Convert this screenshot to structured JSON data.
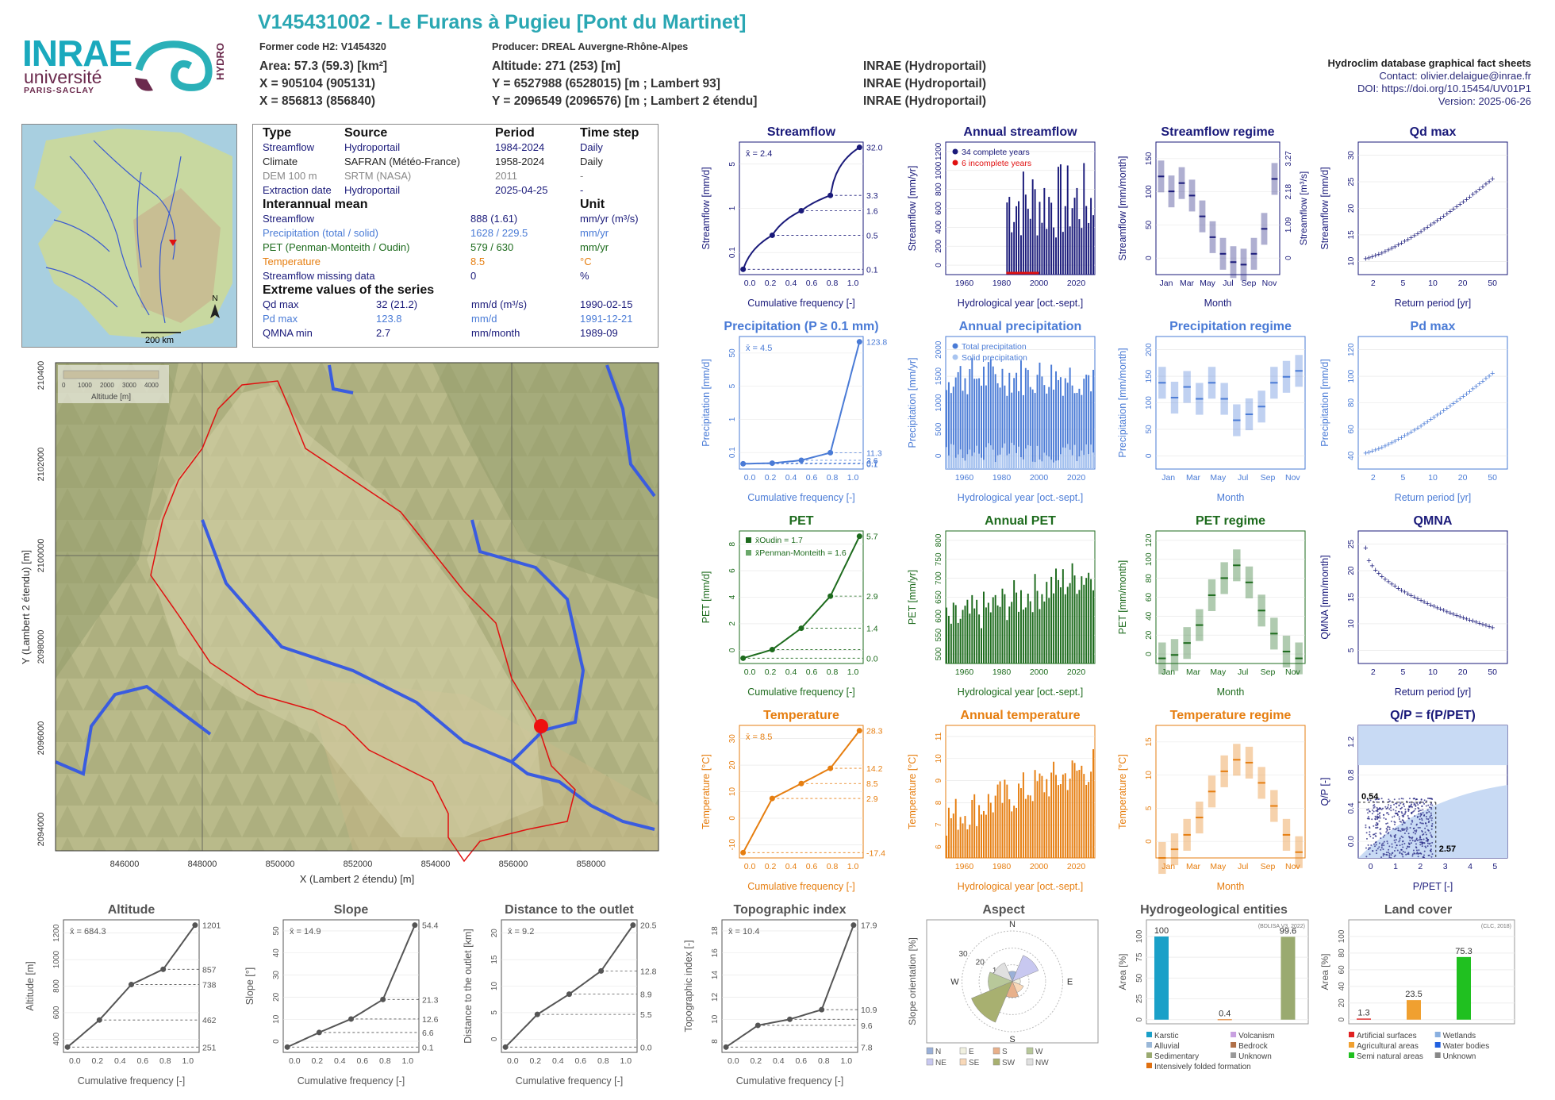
{
  "header": {
    "title": "V145431002 - Le Furans à Pugieu [Pont du Martinet]",
    "former_code": "Former code H2: V1454320",
    "producer": "Producer: DREAL Auvergne-Rhône-Alpes",
    "area": "Area: 57.3 (59.3) [km²]",
    "altitude": "Altitude: 271 (253) [m]",
    "x93": "X = 905104 (905131)",
    "y93": "Y = 6527988 (6528015) [m ; Lambert 93]",
    "x2": "X = 856813 (856840)",
    "y2": "Y = 2096549 (2096576) [m ; Lambert 2 étendu]",
    "src1": "INRAE (Hydroportail)",
    "src2": "INRAE (Hydroportail)",
    "src3": "INRAE (Hydroportail)",
    "db": "Hydroclim database graphical fact sheets",
    "contact": "Contact: olivier.delaigue@inrae.fr",
    "doi": "DOI: https://doi.org/10.15454/UV01P1",
    "version": "Version: 2025-06-26",
    "logo_inrae": "INRAE",
    "logo_univ": "université",
    "logo_ps": "PARIS-SACLAY",
    "logo_hydro": "HYDRO"
  },
  "minimap": {
    "scale": "200 km",
    "north": "N"
  },
  "info": {
    "h_type": "Type",
    "h_source": "Source",
    "h_period": "Period",
    "h_step": "Time step",
    "rows": [
      [
        "Streamflow",
        "Hydroportail",
        "1984-2024",
        "Daily"
      ],
      [
        "Climate",
        "SAFRAN (Météo-France)",
        "1958-2024",
        "Daily"
      ],
      [
        "DEM 100 m",
        "SRTM (NASA)",
        "2011",
        "-"
      ],
      [
        "Extraction date",
        "Hydroportail",
        "2025-04-25",
        "-"
      ]
    ],
    "h_mean": "Interannual mean",
    "h_unit": "Unit",
    "means": [
      [
        "Streamflow",
        "888 (1.61)",
        "mm/yr (m³/s)"
      ],
      [
        "Precipitation (total / solid)",
        "1628 / 229.5",
        "mm/yr"
      ],
      [
        "PET (Penman-Monteith / Oudin)",
        "579 / 630",
        "mm/yr"
      ],
      [
        "Temperature",
        "8.5",
        "°C"
      ],
      [
        "Streamflow missing data",
        "0",
        "%"
      ]
    ],
    "h_extreme": "Extreme values of the series",
    "extremes": [
      [
        "Qd max",
        "32 (21.2)",
        "mm/d (m³/s)",
        "1990-02-15"
      ],
      [
        "Pd max",
        "123.8",
        "mm/d",
        "1991-12-21"
      ],
      [
        "QMNA min",
        "2.7",
        "mm/month",
        "1989-09"
      ]
    ]
  },
  "map": {
    "legend_ticks": [
      "0",
      "1000",
      "2000",
      "3000",
      "4000"
    ],
    "legend_title": "Altitude [m]",
    "xticks": [
      "846000",
      "848000",
      "850000",
      "852000",
      "854000",
      "856000",
      "858000"
    ],
    "yticks": [
      "2094000",
      "2096000",
      "2098000",
      "2100000",
      "2102000",
      "2104000"
    ],
    "xlabel": "X (Lambert 2 étendu) [m]",
    "ylabel": "Y (Lambert 2 étendu) [m]"
  },
  "chart_data": [
    {
      "type": "line",
      "title": "Streamflow",
      "xlabel": "Cumulative frequency [-]",
      "ylabel": "Streamflow [mm/d]",
      "mean": "x̄ = 2.4",
      "log_y": true,
      "x": [
        0,
        0.25,
        0.5,
        0.75,
        1
      ],
      "y": [
        0.1,
        0.5,
        1.6,
        3.3,
        32.0
      ],
      "right_ticks": [
        "32.0",
        "3.3",
        "1.6",
        "0.5",
        "0.1"
      ],
      "yticks": [
        "0.1",
        "1",
        "5"
      ],
      "xticks": [
        "0.0",
        "0.2",
        "0.4",
        "0.6",
        "0.8",
        "1.0"
      ],
      "color": "#1a1a7a"
    },
    {
      "type": "bar",
      "title": "Annual streamflow",
      "xlabel": "Hydrological year [oct.-sept.]",
      "ylabel": "Streamflow [mm/yr]",
      "legend": [
        "34 complete years",
        "6 incomplete years"
      ],
      "yticks": [
        "0",
        "200",
        "400",
        "600",
        "800",
        "1000",
        "1200"
      ],
      "xticks": [
        "1960",
        "1980",
        "2000",
        "2020"
      ],
      "color": "#1a1a7a"
    },
    {
      "type": "bar",
      "title": "Streamflow regime",
      "xlabel": "Month",
      "ylabel": "Streamflow [mm/month]",
      "right_label": "Streamflow [m³/s]",
      "months": [
        "Jan",
        "Mar",
        "May",
        "Jul",
        "Sep",
        "Nov"
      ],
      "values": [
        118,
        100,
        110,
        95,
        70,
        45,
        25,
        15,
        12,
        25,
        55,
        115
      ],
      "yticks": [
        "0",
        "50",
        "100",
        "150"
      ],
      "right_ticks": [
        "0",
        "1.09",
        "2.18",
        "3.27"
      ],
      "color": "#1a1a7a"
    },
    {
      "type": "scatter",
      "title": "Qd max",
      "xlabel": "Return period [yr]",
      "ylabel": "Streamflow [mm/d]",
      "yticks": [
        "10",
        "15",
        "20",
        "25",
        "30"
      ],
      "xticks": [
        "2",
        "5",
        "10",
        "20",
        "50"
      ],
      "color": "#1a1a7a"
    },
    {
      "type": "line",
      "title": "Precipitation (P ≥ 0.1 mm)",
      "xlabel": "Cumulative frequency [-]",
      "ylabel": "Precipitation [mm/d]",
      "mean": "x̄ = 4.5",
      "x": [
        0,
        0.25,
        0.5,
        0.75,
        1
      ],
      "y": [
        0.1,
        0.7,
        3.6,
        11.3,
        123.8
      ],
      "right_ticks": [
        "123.8",
        "11.3",
        "3.6",
        "0.7",
        "0.1"
      ],
      "yticks": [
        "0.1",
        "1",
        "5",
        "50"
      ],
      "xticks": [
        "0.0",
        "0.2",
        "0.4",
        "0.6",
        "0.8",
        "1.0"
      ],
      "color": "#4a7bd6"
    },
    {
      "type": "bar",
      "title": "Annual precipitation",
      "xlabel": "Hydrological year [oct.-sept.]",
      "ylabel": "Precipitation [mm/yr]",
      "legend": [
        "Total precipitation",
        "Solid precipitation"
      ],
      "yticks": [
        "0",
        "500",
        "1000",
        "1500",
        "2000"
      ],
      "xticks": [
        "1960",
        "1980",
        "2000",
        "2020"
      ],
      "color": "#4a7bd6"
    },
    {
      "type": "bar",
      "title": "Precipitation regime",
      "xlabel": "Month",
      "ylabel": "Precipitation [mm/month]",
      "months": [
        "Jan",
        "Mar",
        "May",
        "Jul",
        "Sep",
        "Nov"
      ],
      "values": [
        145,
        120,
        138,
        118,
        145,
        118,
        82,
        92,
        105,
        145,
        155,
        165
      ],
      "yticks": [
        "0",
        "50",
        "100",
        "150",
        "200"
      ],
      "color": "#4a7bd6"
    },
    {
      "type": "scatter",
      "title": "Pd max",
      "xlabel": "Return period [yr]",
      "ylabel": "Precipitation [mm/d]",
      "yticks": [
        "40",
        "60",
        "80",
        "100",
        "120"
      ],
      "xticks": [
        "2",
        "5",
        "10",
        "20",
        "50"
      ],
      "color": "#4a7bd6"
    },
    {
      "type": "line",
      "title": "PET",
      "xlabel": "Cumulative frequency [-]",
      "ylabel": "PET [mm/d]",
      "legend": [
        "x̄Oudin = 1.7",
        "x̄Penman-Monteith = 1.6"
      ],
      "x": [
        0,
        0.25,
        0.5,
        0.75,
        1
      ],
      "y": [
        0.0,
        0.4,
        1.4,
        2.9,
        5.7
      ],
      "right_ticks": [
        "5.7",
        "2.9",
        "1.4",
        "0.0"
      ],
      "yticks": [
        "0",
        "2",
        "4",
        "6",
        "8"
      ],
      "xticks": [
        "0.0",
        "0.2",
        "0.4",
        "0.6",
        "0.8",
        "1.0"
      ],
      "color": "#1d6b1d"
    },
    {
      "type": "bar",
      "title": "Annual PET",
      "xlabel": "Hydrological year [oct.-sept.]",
      "ylabel": "PET [mm/yr]",
      "yticks": [
        "500",
        "550",
        "600",
        "650",
        "700",
        "750",
        "800"
      ],
      "xticks": [
        "1960",
        "1980",
        "2000",
        "2020"
      ],
      "color": "#1d6b1d"
    },
    {
      "type": "bar",
      "title": "PET regime",
      "xlabel": "Month",
      "ylabel": "PET [mm/month]",
      "months": [
        "Jan",
        "Mar",
        "May",
        "Jul",
        "Sep",
        "Nov"
      ],
      "values": [
        6,
        10,
        24,
        45,
        80,
        100,
        115,
        95,
        62,
        35,
        14,
        6
      ],
      "yticks": [
        "0",
        "20",
        "40",
        "60",
        "80",
        "100",
        "120"
      ],
      "color": "#1d6b1d"
    },
    {
      "type": "scatter",
      "title": "QMNA",
      "xlabel": "Return period [yr]",
      "ylabel": "QMNA [mm/month]",
      "yticks": [
        "5",
        "10",
        "15",
        "20",
        "25"
      ],
      "xticks": [
        "2",
        "5",
        "10",
        "20",
        "50"
      ],
      "color": "#1a1a7a"
    },
    {
      "type": "line",
      "title": "Temperature",
      "xlabel": "Cumulative frequency [-]",
      "ylabel": "Temperature [°C]",
      "mean": "x̄ = 8.5",
      "x": [
        0,
        0.25,
        0.5,
        0.75,
        1
      ],
      "y": [
        -17.4,
        2.9,
        8.5,
        14.2,
        28.3
      ],
      "right_ticks": [
        "28.3",
        "14.2",
        "8.5",
        "2.9",
        "-17.4"
      ],
      "yticks": [
        "-10",
        "0",
        "10",
        "20",
        "30"
      ],
      "xticks": [
        "0.0",
        "0.2",
        "0.4",
        "0.6",
        "0.8",
        "1.0"
      ],
      "color": "#e67e10"
    },
    {
      "type": "bar",
      "title": "Annual temperature",
      "xlabel": "Hydrological year [oct.-sept.]",
      "ylabel": "Temperature [°C]",
      "yticks": [
        "6",
        "7",
        "8",
        "9",
        "10",
        "11"
      ],
      "xticks": [
        "1960",
        "1980",
        "2000",
        "2020"
      ],
      "color": "#e67e10"
    },
    {
      "type": "bar",
      "title": "Temperature regime",
      "xlabel": "Month",
      "ylabel": "Temperature [°C]",
      "months": [
        "Jan",
        "Mar",
        "May",
        "Jul",
        "Sep",
        "Nov"
      ],
      "values": [
        0,
        1.5,
        4,
        7,
        11.5,
        15,
        17,
        16.5,
        13,
        9,
        4,
        1
      ],
      "yticks": [
        "0",
        "5",
        "10",
        "15"
      ],
      "color": "#e67e10"
    },
    {
      "type": "scatter",
      "title": "Q/P = f(P/PET)",
      "xlabel": "P/PET [-]",
      "ylabel": "Q/P [-]",
      "annotations": [
        "0.54",
        "2.57"
      ],
      "yticks": [
        "0.0",
        "0.4",
        "0.8",
        "1.2"
      ],
      "xticks": [
        "0",
        "1",
        "2",
        "3",
        "4",
        "5"
      ],
      "color": "#1a1a7a"
    },
    {
      "type": "line",
      "title": "Altitude",
      "xlabel": "Cumulative frequency [-]",
      "ylabel": "Altitude [m]",
      "mean": "x̄ = 684.3",
      "x": [
        0,
        0.25,
        0.5,
        0.75,
        1
      ],
      "y": [
        251,
        462,
        738,
        857,
        1201
      ],
      "right_ticks": [
        "1201",
        "857",
        "738",
        "462",
        "251"
      ],
      "yticks": [
        "400",
        "600",
        "800",
        "1000",
        "1200"
      ],
      "xticks": [
        "0.0",
        "0.2",
        "0.4",
        "0.6",
        "0.8",
        "1.0"
      ],
      "color": "#555"
    },
    {
      "type": "line",
      "title": "Slope",
      "xlabel": "Cumulative frequency [-]",
      "ylabel": "Slope [°]",
      "mean": "x̄ = 14.9",
      "x": [
        0,
        0.25,
        0.5,
        0.75,
        1
      ],
      "y": [
        0.1,
        6.6,
        12.6,
        21.3,
        54.4
      ],
      "right_ticks": [
        "54.4",
        "21.3",
        "12.6",
        "6.6",
        "0.1"
      ],
      "yticks": [
        "0",
        "10",
        "20",
        "30",
        "40",
        "50"
      ],
      "xticks": [
        "0.0",
        "0.2",
        "0.4",
        "0.6",
        "0.8",
        "1.0"
      ],
      "color": "#555"
    },
    {
      "type": "line",
      "title": "Distance to the outlet",
      "xlabel": "Cumulative frequency [-]",
      "ylabel": "Distance to the outlet [km]",
      "mean": "x̄ = 9.2",
      "x": [
        0,
        0.25,
        0.5,
        0.75,
        1
      ],
      "y": [
        0.0,
        5.5,
        8.9,
        12.8,
        20.5
      ],
      "right_ticks": [
        "20.5",
        "12.8",
        "8.9",
        "5.5",
        "0.0"
      ],
      "yticks": [
        "0",
        "5",
        "10",
        "15",
        "20"
      ],
      "xticks": [
        "0.0",
        "0.2",
        "0.4",
        "0.6",
        "0.8",
        "1.0"
      ],
      "color": "#555"
    },
    {
      "type": "line",
      "title": "Topographic index",
      "xlabel": "Cumulative frequency [-]",
      "ylabel": "Topographic index [-]",
      "mean": "x̄ = 10.4",
      "x": [
        0,
        0.25,
        0.5,
        0.75,
        1
      ],
      "y": [
        7.8,
        9.6,
        10.1,
        10.9,
        17.9
      ],
      "right_ticks": [
        "17.9",
        "10.9",
        "9.6",
        "7.8"
      ],
      "yticks": [
        "8",
        "10",
        "12",
        "14",
        "16",
        "18"
      ],
      "xticks": [
        "0.0",
        "0.2",
        "0.4",
        "0.6",
        "0.8",
        "1.0"
      ],
      "color": "#555"
    },
    {
      "type": "pie",
      "title": "Aspect",
      "ylabel": "Slope orientation [%]",
      "directions": [
        "N",
        "E",
        "S",
        "W"
      ],
      "rings": [
        "10",
        "20",
        "30"
      ],
      "legend": [
        "N",
        "E",
        "S",
        "W",
        "NE",
        "SE",
        "SW",
        "NW"
      ],
      "colors": [
        "#9ab0d8",
        "#f0f0e0",
        "#e8b08a",
        "#b8c89a",
        "#c8c8f0",
        "#f8d8b8",
        "#a8b070",
        "#e0e0e0"
      ],
      "values": [
        5,
        4,
        8,
        12,
        14,
        6,
        22,
        10
      ]
    },
    {
      "type": "bar",
      "title": "Hydrogeological entities",
      "ylabel": "Area [%]",
      "source": "(BDLISA V3, 2022)",
      "categories": [
        "Karstic",
        "Alluvial",
        "Sedimentary",
        "Intensively folded formation",
        "Volcanism",
        "Bedrock",
        "Unknown"
      ],
      "bars": [
        {
          "label": "100",
          "value": 100,
          "color": "#1aa0c8"
        },
        {
          "label": "0.4",
          "value": 0.4,
          "color": "#e07010"
        },
        {
          "label": "99.6",
          "value": 99.6,
          "color": "#9aaa70"
        }
      ],
      "yticks": [
        "0",
        "25",
        "50",
        "75",
        "100"
      ]
    },
    {
      "type": "bar",
      "title": "Land cover",
      "ylabel": "Area [%]",
      "source": "(CLC, 2018)",
      "categories": [
        "Artificial surfaces",
        "Agricultural areas",
        "Semi natural areas",
        "Wetlands",
        "Water bodies",
        "Unknown"
      ],
      "bars": [
        {
          "label": "1.3",
          "value": 1.3,
          "color": "#e02020"
        },
        {
          "label": "23.5",
          "value": 23.5,
          "color": "#f0a030"
        },
        {
          "label": "75.3",
          "value": 75.3,
          "color": "#20c020"
        }
      ],
      "yticks": [
        "0",
        "20",
        "40",
        "60",
        "80",
        "100"
      ]
    }
  ]
}
